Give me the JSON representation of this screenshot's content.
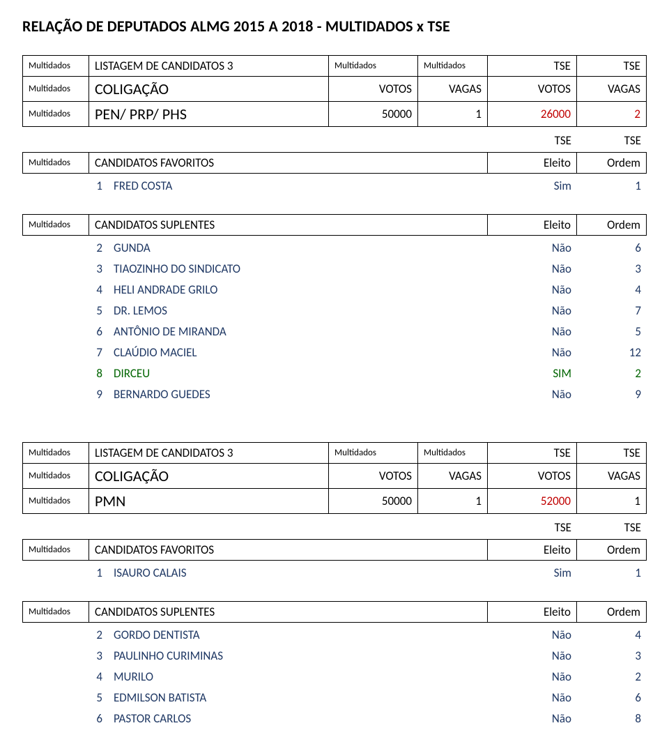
{
  "page_title": "RELAÇÃO DE DEPUTADOS ALMG 2015 A 2018 - MULTIDADOS x TSE",
  "labels": {
    "multidados": "Multidados",
    "tse": "TSE",
    "listagem": "LISTAGEM DE CANDIDATOS 3",
    "coligacao": "COLIGAÇÃO",
    "votos": "VOTOS",
    "vagas": "VAGAS",
    "favoritos": "CANDIDATOS FAVORITOS",
    "suplentes": "CANDIDATOS SUPLENTES",
    "eleito": "Eleito",
    "ordem": "Ordem"
  },
  "blocks": [
    {
      "party": "PEN/ PRP/ PHS",
      "m_votos": "50000",
      "m_vagas": "1",
      "t_votos": "26000",
      "t_vagas": "2",
      "t_votos_color": "#c00000",
      "t_vagas_color": "#c00000",
      "favoritos": [
        {
          "n": "1",
          "name": "FRED COSTA",
          "eleito": "Sim",
          "ordem": "1",
          "color": "#1f3864"
        }
      ],
      "suplentes": [
        {
          "n": "2",
          "name": "GUNDA",
          "eleito": "Não",
          "ordem": "6",
          "color": "#1f3864"
        },
        {
          "n": "3",
          "name": "TIAOZINHO DO SINDICATO",
          "eleito": "Não",
          "ordem": "3",
          "color": "#1f3864"
        },
        {
          "n": "4",
          "name": "HELI ANDRADE GRILO",
          "eleito": "Não",
          "ordem": "4",
          "color": "#1f3864"
        },
        {
          "n": "5",
          "name": "DR. LEMOS",
          "eleito": "Não",
          "ordem": "7",
          "color": "#1f3864"
        },
        {
          "n": "6",
          "name": "ANTÔNIO DE MIRANDA",
          "eleito": "Não",
          "ordem": "5",
          "color": "#1f3864"
        },
        {
          "n": "7",
          "name": "CLAÚDIO MACIEL",
          "eleito": "Não",
          "ordem": "12",
          "color": "#1f3864"
        },
        {
          "n": "8",
          "name": "DIRCEU",
          "eleito": "SIM",
          "ordem": "2",
          "color": "#006400"
        },
        {
          "n": "9",
          "name": "BERNARDO GUEDES",
          "eleito": "Não",
          "ordem": "9",
          "color": "#1f3864"
        }
      ]
    },
    {
      "party": "PMN",
      "m_votos": "50000",
      "m_vagas": "1",
      "t_votos": "52000",
      "t_vagas": "1",
      "t_votos_color": "#c00000",
      "t_vagas_color": "#000000",
      "favoritos": [
        {
          "n": "1",
          "name": "ISAURO CALAIS",
          "eleito": "Sim",
          "ordem": "1",
          "color": "#1f3864"
        }
      ],
      "suplentes": [
        {
          "n": "2",
          "name": "GORDO DENTISTA",
          "eleito": "Não",
          "ordem": "4",
          "color": "#1f3864"
        },
        {
          "n": "3",
          "name": "PAULINHO CURIMINAS",
          "eleito": "Não",
          "ordem": "3",
          "color": "#1f3864"
        },
        {
          "n": "4",
          "name": "MURILO",
          "eleito": "Não",
          "ordem": "2",
          "color": "#1f3864"
        },
        {
          "n": "5",
          "name": "EDMILSON BATISTA",
          "eleito": "Não",
          "ordem": "6",
          "color": "#1f3864"
        },
        {
          "n": "6",
          "name": "PASTOR CARLOS",
          "eleito": "Não",
          "ordem": "8",
          "color": "#1f3864"
        }
      ]
    }
  ]
}
